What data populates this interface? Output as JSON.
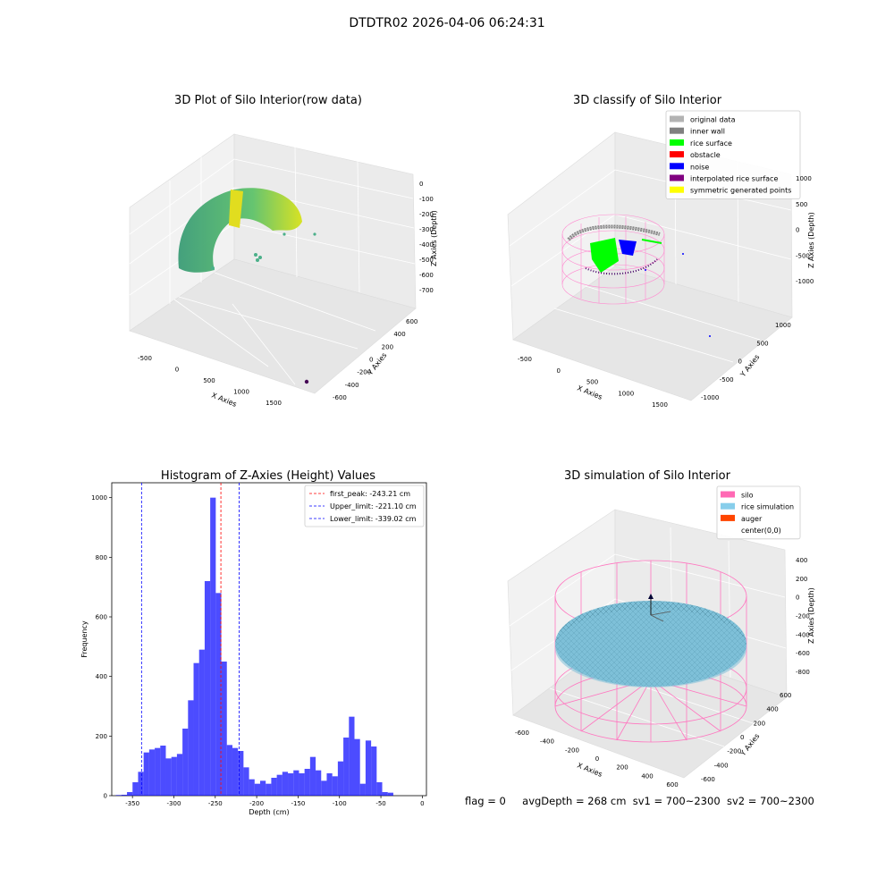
{
  "figure": {
    "suptitle": "DTDTR02 2026-04-06 06:24:31",
    "status": {
      "flag": "flag = 0",
      "avg_depth": "avgDepth = 268 cm",
      "sv1": "sv1 = 700~2300",
      "sv2": "sv2 = 700~2300"
    }
  },
  "chart_data": [
    {
      "type": "scatter",
      "title": "3D Plot of Silo Interior(row data)",
      "xlabel": "X Axies",
      "ylabel": "Y Axies",
      "zlabel": "Z Axies (Depth)",
      "x_ticks": [
        -500,
        0,
        500,
        1000,
        1500
      ],
      "y_ticks": [
        600,
        400,
        200,
        0,
        -200,
        -400,
        -600
      ],
      "z_ticks": [
        0,
        -100,
        -200,
        -300,
        -400,
        -500,
        -600,
        -700
      ],
      "colormap": "viridis"
    },
    {
      "type": "scatter",
      "title": "3D classify of Silo Interior",
      "xlabel": "X Axies",
      "ylabel": "Y Axies",
      "zlabel": "Z Axies (Depth)",
      "x_ticks": [
        -500,
        0,
        500,
        1000,
        1500
      ],
      "y_ticks": [
        1000,
        500,
        0,
        -500,
        -1000
      ],
      "z_ticks": [
        1000,
        500,
        0,
        -500,
        -1000
      ],
      "legend_position": "top-right",
      "legend": [
        {
          "label": "original data",
          "color": "#b3b3b3"
        },
        {
          "label": "inner wall",
          "color": "#808080"
        },
        {
          "label": "rice surface",
          "color": "#00ff00"
        },
        {
          "label": "obstacle",
          "color": "#ff0000"
        },
        {
          "label": "noise",
          "color": "#0000ff"
        },
        {
          "label": "interpolated rice surface",
          "color": "#800080"
        },
        {
          "label": "symmetric generated points",
          "color": "#ffff00"
        }
      ]
    },
    {
      "type": "bar",
      "title": "Histogram of Z-Axies (Height) Values",
      "xlabel": "Depth (cm)",
      "ylabel": "Frequency",
      "xlim": [
        -375,
        5
      ],
      "ylim": [
        0,
        1050
      ],
      "x_ticks": [
        -350,
        -300,
        -250,
        -200,
        -150,
        -100,
        -50,
        0
      ],
      "y_ticks": [
        0,
        200,
        400,
        600,
        800,
        1000
      ],
      "bin_start": -370,
      "bin_width": 6.7,
      "bar_color": "#0000ff",
      "values": [
        2,
        3,
        12,
        45,
        80,
        145,
        155,
        160,
        168,
        125,
        130,
        140,
        225,
        320,
        445,
        490,
        720,
        1000,
        680,
        450,
        170,
        160,
        150,
        95,
        55,
        40,
        50,
        40,
        60,
        70,
        80,
        75,
        85,
        75,
        90,
        130,
        85,
        50,
        75,
        65,
        115,
        195,
        265,
        190,
        40,
        185,
        165,
        45,
        12,
        10
      ],
      "legend_position": "top-right",
      "reference_lines": [
        {
          "label": "first_peak: -243.21 cm",
          "x": -243.21,
          "color": "#ff0000"
        },
        {
          "label": "Upper_limit: -221.10 cm",
          "x": -221.1,
          "color": "#0000ff"
        },
        {
          "label": "Lower_limit: -339.02 cm",
          "x": -339.02,
          "color": "#0000ff"
        }
      ]
    },
    {
      "type": "scatter",
      "title": "3D simulation of Silo Interior",
      "xlabel": "X Axies",
      "ylabel": "Y Axies",
      "zlabel": "Z Axies (Depth)",
      "x_ticks": [
        -600,
        -400,
        -200,
        0,
        200,
        400,
        600
      ],
      "y_ticks": [
        600,
        400,
        200,
        0,
        -200,
        -400,
        -600
      ],
      "z_ticks": [
        400,
        200,
        0,
        -200,
        -400,
        -600,
        -800
      ],
      "legend_position": "top-right",
      "legend": [
        {
          "label": "silo",
          "color": "#ff69b4"
        },
        {
          "label": "rice simulation",
          "color": "#87ceeb"
        },
        {
          "label": "auger",
          "color": "#ff4500"
        },
        {
          "label": "center(0,0)",
          "color": "#ffffff"
        }
      ]
    }
  ]
}
